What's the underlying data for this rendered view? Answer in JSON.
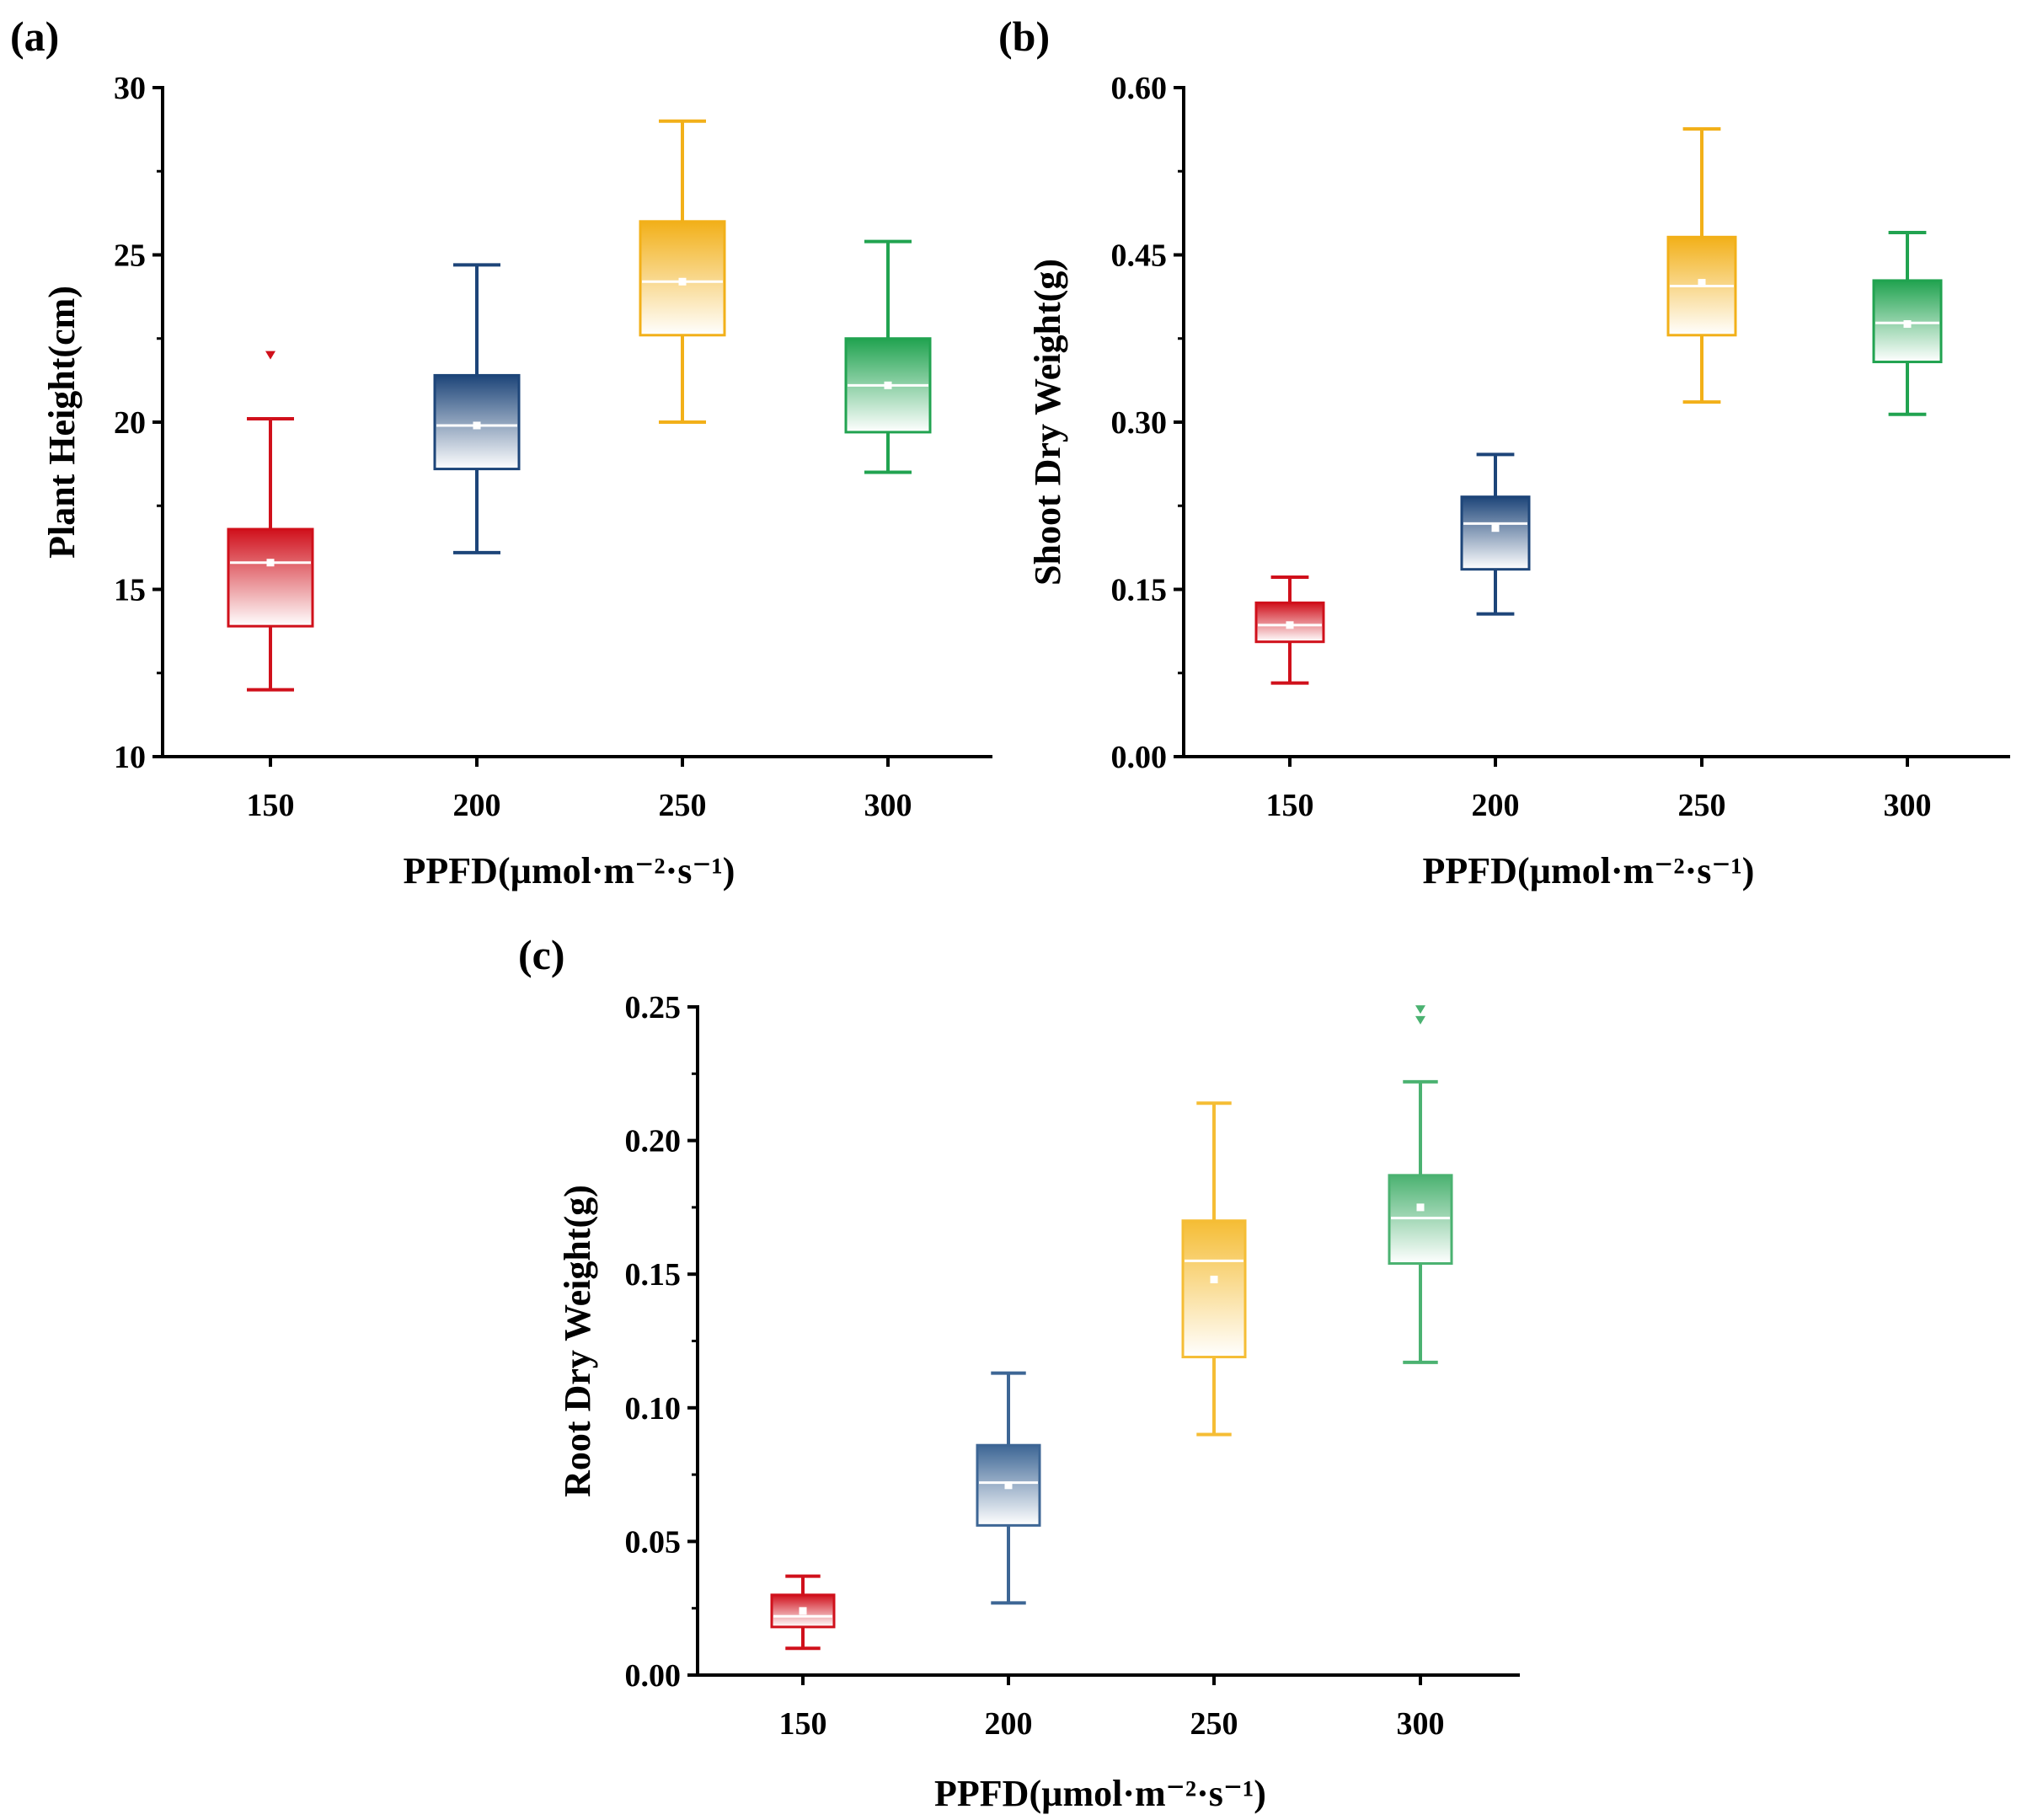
{
  "chart_data": [
    {
      "type": "box",
      "panel_label": "(a)",
      "title": "",
      "xlabel": "PPFD(µmol·m⁻²·s⁻¹)",
      "ylabel": "Plant Height(cm)",
      "ylim": [
        10,
        30
      ],
      "yticks": [
        10,
        15,
        20,
        25,
        30
      ],
      "ytick_labels": [
        "10",
        "15",
        "20",
        "25",
        "30"
      ],
      "categories": [
        "150",
        "200",
        "250",
        "300"
      ],
      "series": [
        {
          "name": "150",
          "color": "#d0101b",
          "whisker_low": 12.0,
          "q1": 13.9,
          "median": 15.8,
          "q3": 16.8,
          "whisker_high": 20.1,
          "mean": 15.8,
          "outliers": [
            22.0
          ]
        },
        {
          "name": "200",
          "color": "#1d4579",
          "whisker_low": 16.1,
          "q1": 18.6,
          "median": 19.9,
          "q3": 21.4,
          "whisker_high": 24.7,
          "mean": 19.9,
          "outliers": []
        },
        {
          "name": "250",
          "color": "#f2b019",
          "whisker_low": 20.0,
          "q1": 22.6,
          "median": 24.2,
          "q3": 26.0,
          "whisker_high": 29.0,
          "mean": 24.2,
          "outliers": []
        },
        {
          "name": "300",
          "color": "#21a350",
          "whisker_low": 18.5,
          "q1": 19.7,
          "median": 21.1,
          "q3": 22.5,
          "whisker_high": 25.4,
          "mean": 21.1,
          "outliers": []
        }
      ]
    },
    {
      "type": "box",
      "panel_label": "(b)",
      "title": "",
      "xlabel": "PPFD(µmol·m⁻²·s⁻¹)",
      "ylabel": "Shoot Dry Weight(g)",
      "ylim": [
        0.0,
        0.6
      ],
      "yticks": [
        0.0,
        0.15,
        0.3,
        0.45,
        0.6
      ],
      "ytick_labels": [
        "0.00",
        "0.15",
        "0.30",
        "0.45",
        "0.60"
      ],
      "categories": [
        "150",
        "200",
        "250",
        "300"
      ],
      "series": [
        {
          "name": "150",
          "color": "#d0101b",
          "whisker_low": 0.066,
          "q1": 0.103,
          "median": 0.118,
          "q3": 0.138,
          "whisker_high": 0.161,
          "mean": 0.118,
          "outliers": []
        },
        {
          "name": "200",
          "color": "#1d4579",
          "whisker_low": 0.128,
          "q1": 0.168,
          "median": 0.209,
          "q3": 0.233,
          "whisker_high": 0.271,
          "mean": 0.205,
          "outliers": []
        },
        {
          "name": "250",
          "color": "#f2b019",
          "whisker_low": 0.318,
          "q1": 0.378,
          "median": 0.422,
          "q3": 0.466,
          "whisker_high": 0.563,
          "mean": 0.425,
          "outliers": []
        },
        {
          "name": "300",
          "color": "#21a350",
          "whisker_low": 0.307,
          "q1": 0.354,
          "median": 0.389,
          "q3": 0.427,
          "whisker_high": 0.47,
          "mean": 0.388,
          "outliers": []
        }
      ]
    },
    {
      "type": "box",
      "panel_label": "(c)",
      "title": "",
      "xlabel": "PPFD(µmol·m⁻²·s⁻¹)",
      "ylabel": "Root Dry Weight(g)",
      "ylim": [
        0.0,
        0.25
      ],
      "yticks": [
        0.0,
        0.05,
        0.1,
        0.15,
        0.2,
        0.25
      ],
      "ytick_labels": [
        "0.00",
        "0.05",
        "0.10",
        "0.15",
        "0.20",
        "0.25"
      ],
      "categories": [
        "150",
        "200",
        "250",
        "300"
      ],
      "series": [
        {
          "name": "150",
          "color": "#d0101b",
          "whisker_low": 0.01,
          "q1": 0.018,
          "median": 0.022,
          "q3": 0.03,
          "whisker_high": 0.037,
          "mean": 0.024,
          "outliers": []
        },
        {
          "name": "200",
          "color": "#3d6695",
          "whisker_low": 0.027,
          "q1": 0.056,
          "median": 0.072,
          "q3": 0.086,
          "whisker_high": 0.113,
          "mean": 0.071,
          "outliers": []
        },
        {
          "name": "250",
          "color": "#f5bd35",
          "whisker_low": 0.09,
          "q1": 0.119,
          "median": 0.155,
          "q3": 0.17,
          "whisker_high": 0.214,
          "mean": 0.148,
          "outliers": []
        },
        {
          "name": "300",
          "color": "#4bb271",
          "whisker_low": 0.117,
          "q1": 0.154,
          "median": 0.171,
          "q3": 0.187,
          "whisker_high": 0.222,
          "mean": 0.175,
          "outliers": [
            0.245,
            0.249
          ]
        }
      ]
    }
  ]
}
